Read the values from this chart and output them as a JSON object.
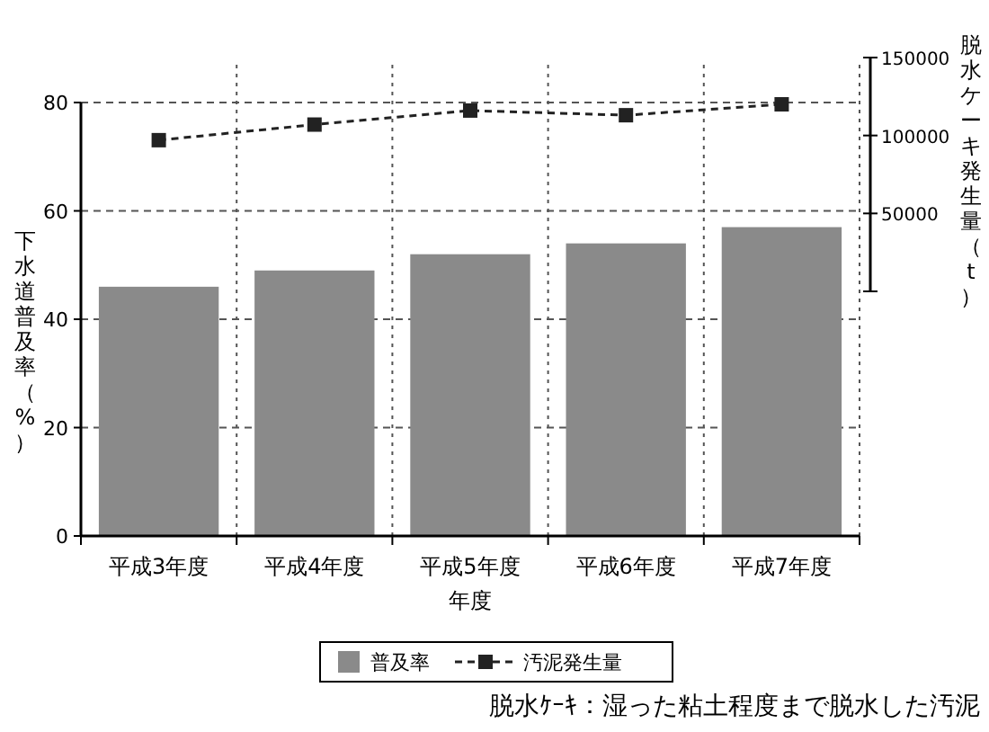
{
  "chart_data": {
    "type": "bar",
    "xlabel": "年度",
    "ylabel": "下水道普及率（%）",
    "y2label": "脱水ケーキ発生量（t）",
    "categories": [
      "平成3年度",
      "平成4年度",
      "平成5年度",
      "平成6年度",
      "平成7年度"
    ],
    "series": [
      {
        "name": "普及率",
        "color": "#8a8a8a",
        "values": [
          46,
          49,
          52,
          54,
          57
        ]
      },
      {
        "name": "汚泥発生量",
        "type": "line",
        "axis": "y2",
        "color": "#222222",
        "values": [
          97000,
          107000,
          116000,
          113000,
          120000
        ]
      }
    ],
    "ylim": [
      0,
      80
    ],
    "yticks": [
      0,
      20,
      40,
      60,
      80
    ],
    "y2lim": [
      0,
      150000
    ],
    "y2ticks": [
      {
        "value": 0,
        "label": null
      },
      50000,
      100000,
      150000
    ],
    "marker": "square",
    "line_style": "dashed",
    "grid": true,
    "legend": "bottom",
    "annotations": [
      "脱水ｹｰｷ：湿った粘土程度まで脱水した汚泥"
    ]
  }
}
